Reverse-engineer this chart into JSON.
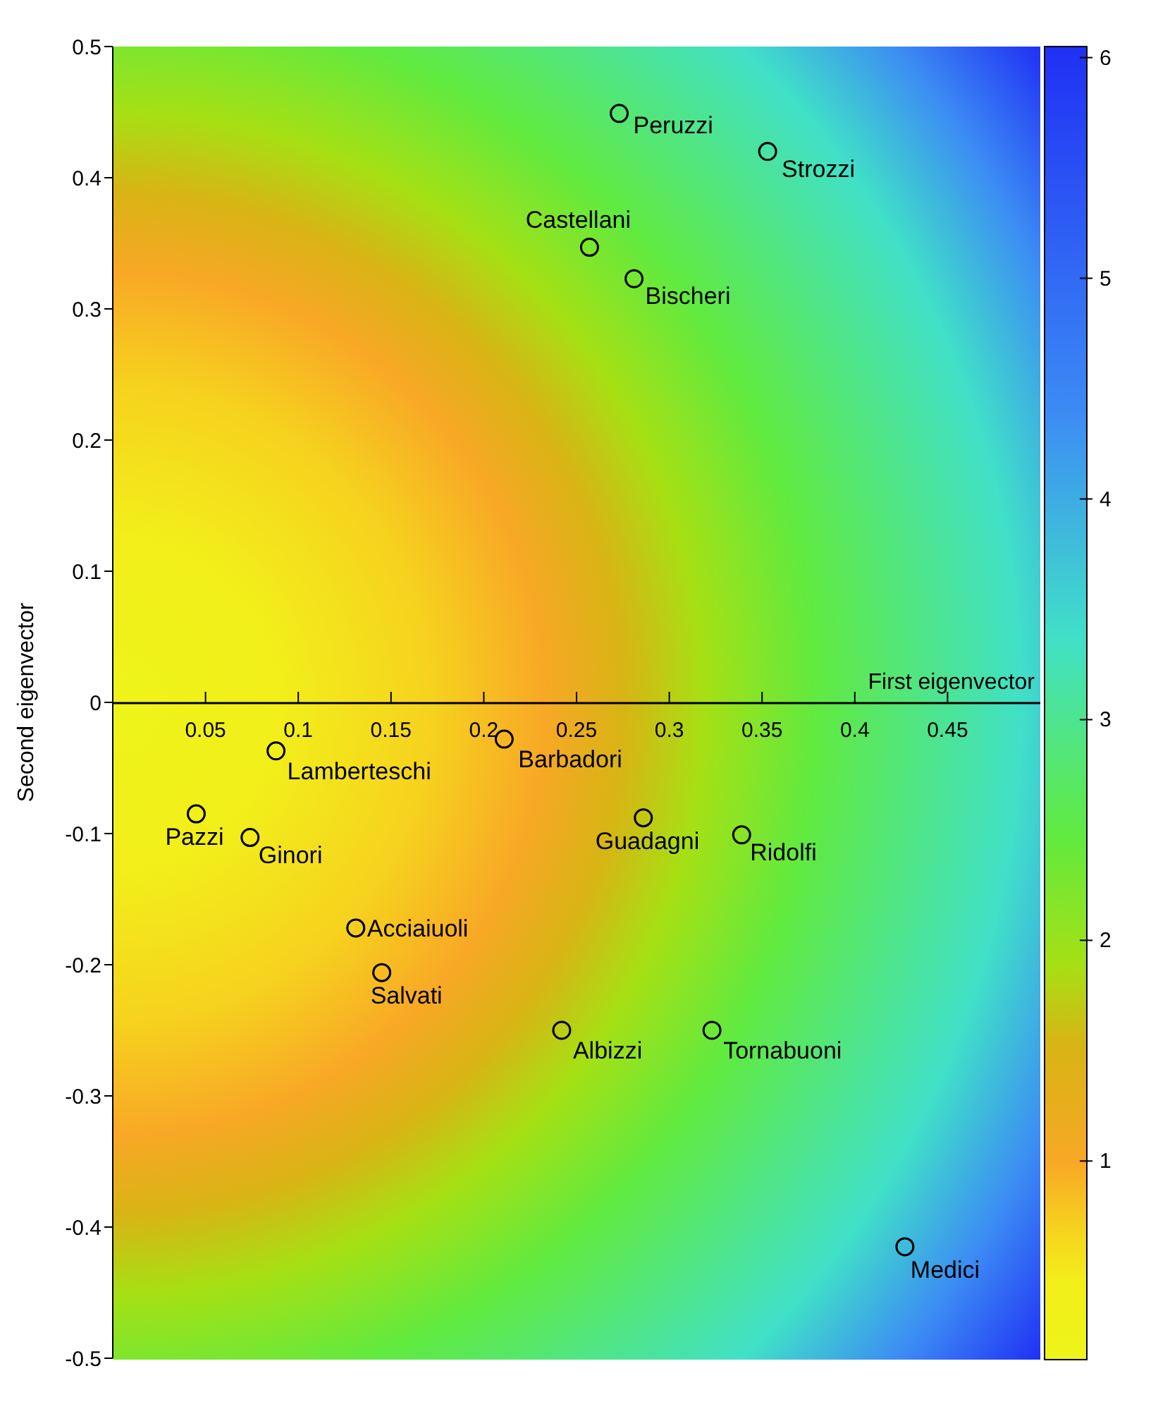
{
  "chart_data": {
    "type": "scatter",
    "xlabel": "First eigenvector",
    "ylabel": "Second eigenvector",
    "color": "#000000",
    "marker": "circle",
    "x": [
      0.273,
      0.353,
      0.257,
      0.281,
      0.211,
      0.088,
      0.045,
      0.074,
      0.286,
      0.339,
      0.131,
      0.145,
      0.242,
      0.323,
      0.427
    ],
    "values": [
      0.449,
      0.42,
      0.347,
      0.323,
      -0.028,
      -0.037,
      -0.085,
      -0.103,
      -0.088,
      -0.101,
      -0.172,
      -0.206,
      -0.25,
      -0.25,
      -0.415
    ],
    "annotations": [
      {
        "text": "Peruzzi",
        "x": 0.273,
        "y": 0.449
      },
      {
        "text": "Strozzi",
        "x": 0.353,
        "y": 0.42
      },
      {
        "text": "Castellani",
        "x": 0.257,
        "y": 0.347
      },
      {
        "text": "Bischeri",
        "x": 0.281,
        "y": 0.323
      },
      {
        "text": "Barbadori",
        "x": 0.211,
        "y": -0.028
      },
      {
        "text": "Lamberteschi",
        "x": 0.088,
        "y": -0.037
      },
      {
        "text": "Pazzi",
        "x": 0.045,
        "y": -0.085
      },
      {
        "text": "Ginori",
        "x": 0.074,
        "y": -0.103
      },
      {
        "text": "Guadagni",
        "x": 0.286,
        "y": -0.088
      },
      {
        "text": "Ridolfi",
        "x": 0.339,
        "y": -0.101
      },
      {
        "text": "Acciaiuoli",
        "x": 0.131,
        "y": -0.172
      },
      {
        "text": "Salvati",
        "x": 0.145,
        "y": -0.206
      },
      {
        "text": "Albizzi",
        "x": 0.242,
        "y": -0.25
      },
      {
        "text": "Tornabuoni",
        "x": 0.323,
        "y": -0.25
      },
      {
        "text": "Medici",
        "x": 0.427,
        "y": -0.415
      }
    ],
    "xlim": [
      0,
      0.5
    ],
    "xticks": [
      0.05,
      0.1,
      0.15,
      0.2,
      0.25,
      0.3,
      0.35,
      0.4,
      0.45
    ],
    "ylim": [
      -0.5,
      0.5
    ],
    "yticks": [
      -0.5,
      -0.4,
      -0.3,
      -0.2,
      -0.1,
      0,
      0.1,
      0.2,
      0.3,
      0.4,
      0.5
    ],
    "clim": [
      0.1,
      6.05
    ],
    "cticks": [
      1,
      2,
      3,
      4,
      5,
      6
    ]
  }
}
